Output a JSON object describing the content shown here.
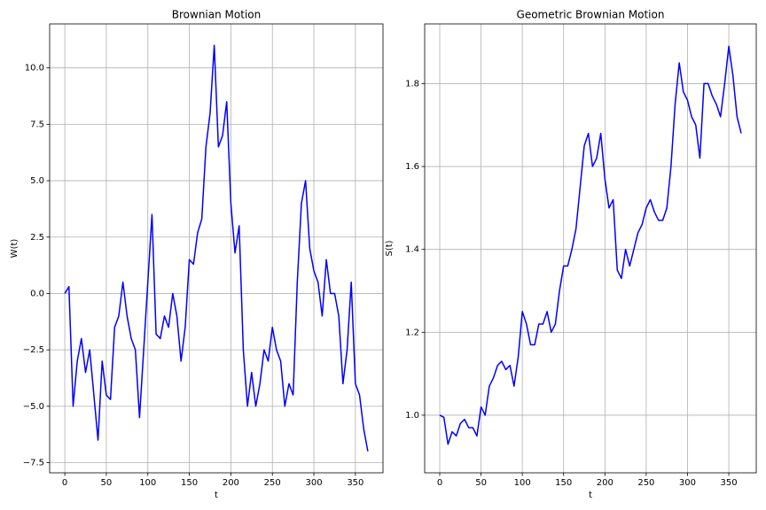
{
  "chart_data": [
    {
      "type": "line",
      "title": "Brownian Motion",
      "xlabel": "t",
      "ylabel": "W(t)",
      "color": "#0000ff",
      "grid": true,
      "x": [
        0,
        5,
        10,
        15,
        20,
        25,
        30,
        35,
        40,
        45,
        50,
        55,
        60,
        65,
        70,
        75,
        80,
        85,
        90,
        95,
        100,
        105,
        110,
        115,
        120,
        125,
        130,
        135,
        140,
        145,
        150,
        155,
        160,
        165,
        170,
        175,
        180,
        185,
        190,
        195,
        200,
        205,
        210,
        215,
        220,
        225,
        230,
        235,
        240,
        245,
        250,
        255,
        260,
        265,
        270,
        275,
        280,
        285,
        290,
        295,
        300,
        305,
        310,
        315,
        320,
        325,
        330,
        335,
        340,
        345,
        350,
        355,
        360,
        365
      ],
      "values": [
        0,
        0.3,
        -5,
        -3,
        -2,
        -3.5,
        -2.5,
        -4.5,
        -6.5,
        -3,
        -4.5,
        -4.7,
        -1.5,
        -1,
        0.5,
        -1,
        -2,
        -2.5,
        -5.5,
        -2.5,
        0.5,
        3.5,
        -1.8,
        -2,
        -1,
        -1.5,
        0,
        -1,
        -3,
        -1.5,
        1.5,
        1.3,
        2.7,
        3.3,
        6.5,
        8,
        11,
        6.5,
        7,
        8.5,
        4,
        1.8,
        3,
        -2.5,
        -5,
        -3.5,
        -5,
        -4,
        -2.5,
        -3,
        -1.5,
        -2.5,
        -3,
        -5,
        -4,
        -4.5,
        0.5,
        4,
        5,
        2,
        1,
        0.5,
        -1,
        1.5,
        0,
        0,
        -1,
        -4,
        -2.5,
        0.5,
        -4,
        -4.5,
        -6,
        -7
      ],
      "xlim": [
        -18.25,
        383.25
      ],
      "ylim": [
        -7.95,
        11.95
      ],
      "xticks": [
        0,
        50,
        100,
        150,
        200,
        250,
        300,
        350
      ],
      "yticks": [
        {
          "value": -7.5,
          "label": "−7.5"
        },
        {
          "value": -5,
          "label": "−5.0"
        },
        {
          "value": -2.5,
          "label": "−2.5"
        },
        {
          "value": 0,
          "label": "0.0"
        },
        2.5,
        {
          "value": 5,
          "label": "5.0"
        },
        7.5,
        {
          "value": 10,
          "label": "10.0"
        }
      ]
    },
    {
      "type": "line",
      "title": "Geometric Brownian Motion",
      "xlabel": "t",
      "ylabel": "S(t)",
      "color": "#0000ff",
      "grid": true,
      "x": [
        0,
        5,
        10,
        15,
        20,
        25,
        30,
        35,
        40,
        45,
        50,
        55,
        60,
        65,
        70,
        75,
        80,
        85,
        90,
        95,
        100,
        105,
        110,
        115,
        120,
        125,
        130,
        135,
        140,
        145,
        150,
        155,
        160,
        165,
        170,
        175,
        180,
        185,
        190,
        195,
        200,
        205,
        210,
        215,
        220,
        225,
        230,
        235,
        240,
        245,
        250,
        255,
        260,
        265,
        270,
        275,
        280,
        285,
        290,
        295,
        300,
        305,
        310,
        315,
        320,
        325,
        330,
        335,
        340,
        345,
        350,
        355,
        360,
        365
      ],
      "values": [
        1.0,
        0.995,
        0.93,
        0.96,
        0.95,
        0.98,
        0.99,
        0.97,
        0.97,
        0.95,
        1.02,
        1.0,
        1.07,
        1.09,
        1.12,
        1.13,
        1.11,
        1.12,
        1.07,
        1.14,
        1.25,
        1.22,
        1.17,
        1.17,
        1.22,
        1.22,
        1.25,
        1.2,
        1.22,
        1.3,
        1.36,
        1.36,
        1.4,
        1.45,
        1.55,
        1.65,
        1.68,
        1.6,
        1.62,
        1.68,
        1.57,
        1.5,
        1.52,
        1.35,
        1.33,
        1.4,
        1.36,
        1.4,
        1.44,
        1.46,
        1.5,
        1.52,
        1.49,
        1.47,
        1.47,
        1.5,
        1.6,
        1.75,
        1.85,
        1.78,
        1.76,
        1.72,
        1.7,
        1.62,
        1.8,
        1.8,
        1.77,
        1.75,
        1.72,
        1.8,
        1.89,
        1.82,
        1.72,
        1.68
      ],
      "xlim": [
        -18.25,
        383.25
      ],
      "ylim": [
        0.861,
        1.944
      ],
      "xticks": [
        0,
        50,
        100,
        150,
        200,
        250,
        300,
        350
      ],
      "yticks": [
        {
          "value": 1,
          "label": "1.0"
        },
        1.2,
        1.4,
        1.6,
        1.8
      ]
    }
  ]
}
